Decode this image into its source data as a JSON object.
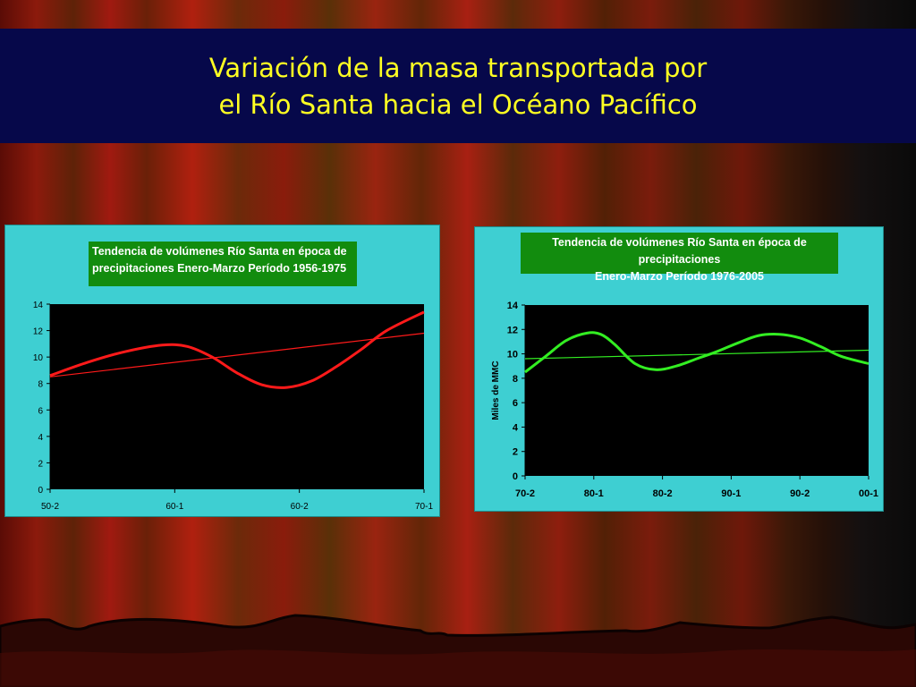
{
  "slide": {
    "title_line1": "Variación de la masa transportada por",
    "title_line2": "el Río Santa hacia el Océano Pacífico"
  },
  "chart_data": [
    {
      "type": "line",
      "title_line1": "Tendencia de volúmenes Río Santa en época de",
      "title_line2": "precipitaciones Enero-Marzo  Período 1956-1975",
      "xlabel": "",
      "ylabel": "",
      "categories": [
        "50-2",
        "60-1",
        "60-2",
        "70-1"
      ],
      "yticks": [
        "0",
        "2",
        "4",
        "6",
        "8",
        "10",
        "12",
        "14"
      ],
      "ylim": [
        0,
        14
      ],
      "grid": false,
      "series": [
        {
          "color": "#ff1a1a",
          "x": [
            0,
            0.3,
            0.6,
            0.9,
            1.1,
            1.3,
            1.5,
            1.7,
            1.9,
            2.1,
            2.3,
            2.5,
            2.7,
            3.0
          ],
          "y": [
            8.6,
            9.6,
            10.4,
            10.9,
            10.8,
            10.0,
            8.8,
            7.9,
            7.7,
            8.2,
            9.3,
            10.6,
            12.0,
            13.4
          ]
        },
        {
          "type": "trend",
          "color": "#ff1a1a",
          "x": [
            0,
            3.0
          ],
          "y": [
            8.5,
            11.8
          ]
        }
      ]
    },
    {
      "type": "line",
      "title_line1": "Tendencia de volúmenes Río Santa en época de precipitaciones",
      "title_line2": "Enero-Marzo  Período 1976-2005",
      "xlabel": "",
      "ylabel": "Miles de MMC",
      "categories": [
        "70-2",
        "80-1",
        "80-2",
        "90-1",
        "90-2",
        "00-1"
      ],
      "yticks": [
        "0",
        "2",
        "4",
        "6",
        "8",
        "10",
        "12",
        "14"
      ],
      "ylim": [
        0,
        14
      ],
      "grid": false,
      "series": [
        {
          "color": "#33ee22",
          "x": [
            0,
            0.3,
            0.6,
            0.9,
            1.1,
            1.3,
            1.6,
            1.9,
            2.2,
            2.5,
            2.8,
            3.1,
            3.4,
            3.7,
            4.0,
            4.3,
            4.6,
            5.0
          ],
          "y": [
            8.5,
            9.8,
            11.1,
            11.7,
            11.6,
            10.8,
            9.2,
            8.7,
            9.0,
            9.6,
            10.2,
            10.9,
            11.5,
            11.6,
            11.3,
            10.6,
            9.8,
            9.2
          ],
          "note_x": "x in category index units (0 = 70-2)"
        },
        {
          "type": "trend",
          "color": "#33ee22",
          "x": [
            0,
            5.0
          ],
          "y": [
            9.6,
            10.3
          ]
        }
      ]
    }
  ]
}
